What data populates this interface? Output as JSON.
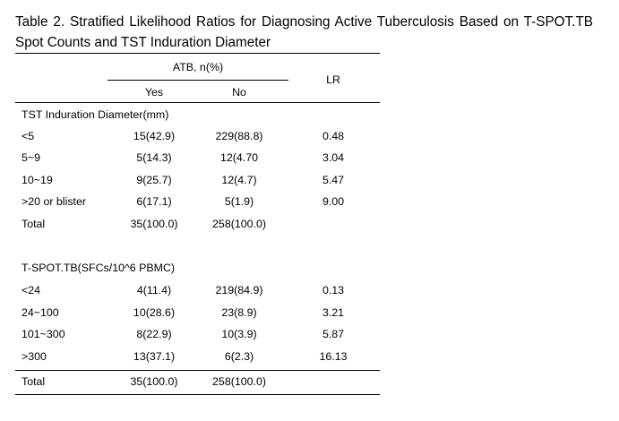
{
  "table": {
    "caption": "Table 2. Stratified Likelihood Ratios for Diagnosing Active Tuberculosis Based on T-SPOT.TB Spot Counts and TST Induration Diameter",
    "header": {
      "group_label": "ATB, n(%)",
      "yes_label": "Yes",
      "no_label": "No",
      "lr_label": "LR"
    },
    "tst": {
      "title": "TST Induration Diameter(mm)",
      "rows": [
        {
          "label": "<5",
          "yes": "15(42.9)",
          "no": "229(88.8)",
          "lr": "0.48"
        },
        {
          "label": "5~9",
          "yes": "5(14.3)",
          "no": "12(4.70",
          "lr": "3.04"
        },
        {
          "label": "10~19",
          "yes": "9(25.7)",
          "no": "12(4.7)",
          "lr": "5.47"
        },
        {
          "label": ">20 or blister",
          "yes": "6(17.1)",
          "no": "5(1.9)",
          "lr": "9.00"
        },
        {
          "label": "Total",
          "yes": "35(100.0)",
          "no": "258(100.0)",
          "lr": ""
        }
      ]
    },
    "tspot": {
      "title": "T-SPOT.TB(SFCs/10^6 PBMC)",
      "rows": [
        {
          "label": "<24",
          "yes": "4(11.4)",
          "no": "219(84.9)",
          "lr": "0.13"
        },
        {
          "label": "24~100",
          "yes": "10(28.6)",
          "no": "23(8.9)",
          "lr": "3.21"
        },
        {
          "label": "101~300",
          "yes": "8(22.9)",
          "no": "10(3.9)",
          "lr": "5.87"
        },
        {
          "label": ">300",
          "yes": "13(37.1)",
          "no": "6(2.3)",
          "lr": "16.13"
        },
        {
          "label": "Total",
          "yes": "35(100.0)",
          "no": "258(100.0)",
          "lr": ""
        }
      ]
    }
  }
}
